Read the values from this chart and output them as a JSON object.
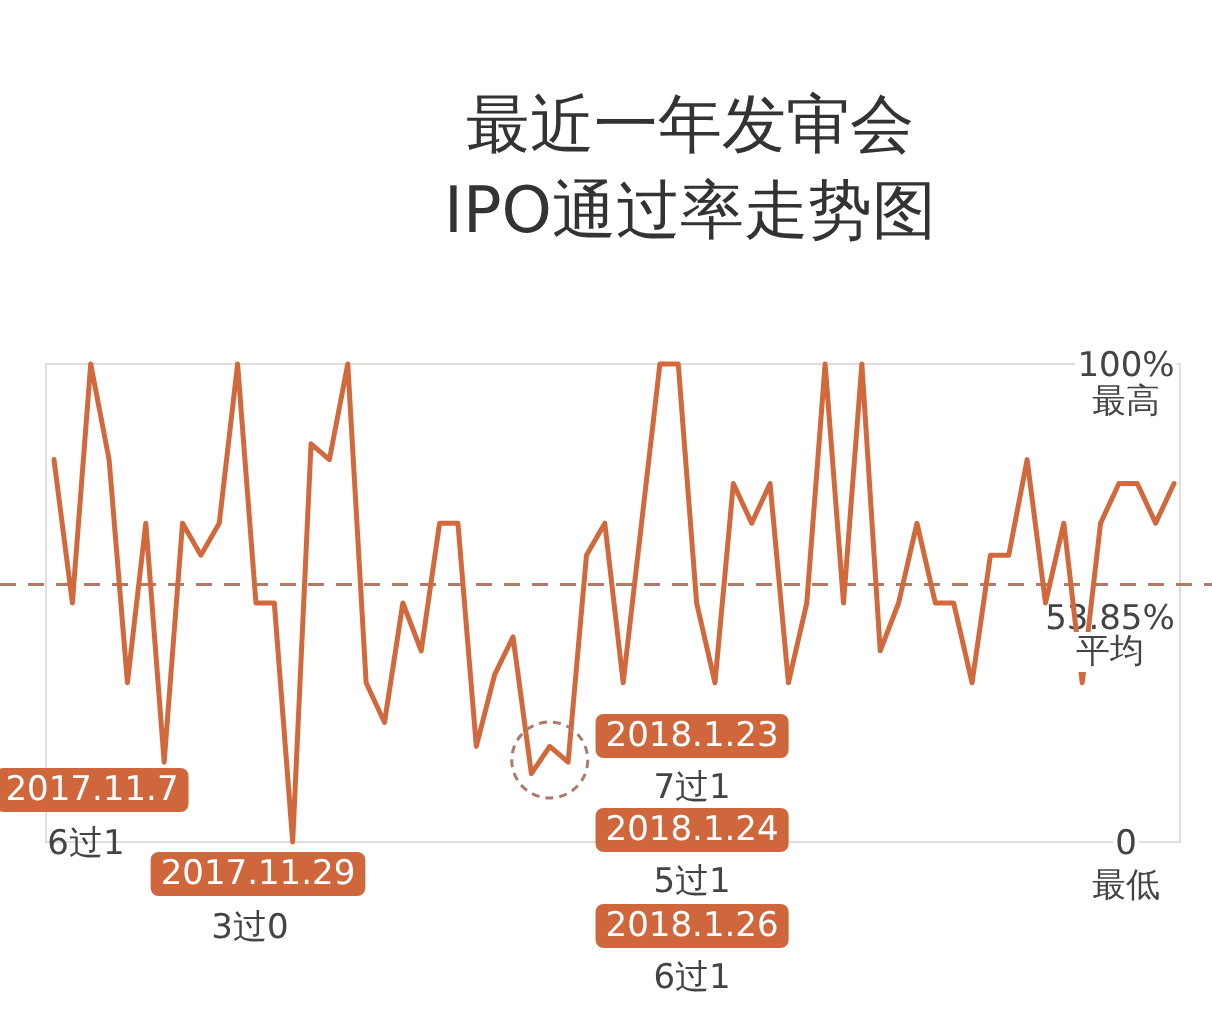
{
  "chart_data": {
    "type": "line",
    "title": "最近一年发审会\nIPO通过率走势图",
    "categories": [
      null,
      null,
      null,
      null,
      null,
      null,
      null,
      null,
      null,
      null,
      null,
      null,
      null,
      null,
      null,
      null,
      null,
      null,
      null,
      null,
      null,
      null,
      null,
      null,
      null,
      null,
      null,
      null,
      null,
      null,
      null,
      null,
      null,
      null,
      null,
      null,
      null,
      null,
      null,
      null,
      null,
      null,
      null,
      null,
      null,
      null,
      null,
      null,
      null,
      null,
      null,
      null,
      null,
      null,
      null,
      null,
      null,
      null,
      null,
      null,
      null,
      null
    ],
    "series": [
      {
        "color": "#d2693c",
        "values": [
          80,
          50,
          100,
          80,
          33.3,
          66.7,
          16.7,
          66.7,
          60,
          66.7,
          100,
          50,
          50,
          0,
          83.3,
          80,
          100,
          33.3,
          25,
          50,
          40,
          66.7,
          66.7,
          20,
          35,
          42.9,
          14.3,
          20,
          16.7,
          60,
          66.7,
          33.3,
          66.7,
          100,
          100,
          50,
          33.3,
          75,
          66.7,
          75,
          33.3,
          50,
          100,
          50,
          100,
          40,
          50,
          66.7,
          50,
          50,
          33.3,
          60,
          60,
          80,
          50,
          66.7,
          33.3,
          66.7,
          75,
          75,
          66.7,
          75
        ]
      }
    ],
    "ylim": [
      0,
      100
    ],
    "yticks": [
      {
        "value": 100,
        "label": "100%"
      },
      0
    ],
    "tick_labels": "y",
    "marker": "none",
    "line_style": "solid",
    "grid": false,
    "ref_lines": [
      {
        "axis": "y",
        "value": 53.85,
        "label": "53.85%",
        "color": "#b07a6a",
        "line_style": "dashed"
      }
    ],
    "annotations": [
      "最高",
      "平均",
      "最低",
      "2017.11.7",
      "6过1",
      "2017.11.29",
      "3过0",
      "2018.1.23",
      "7过1",
      "2018.1.24",
      "5过1",
      "2018.1.26",
      "6过1"
    ]
  }
}
